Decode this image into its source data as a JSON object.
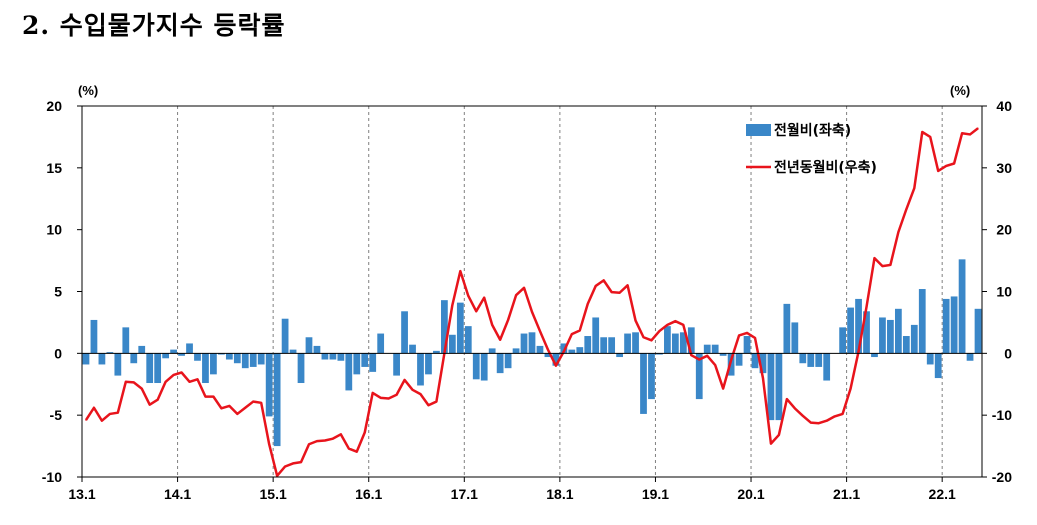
{
  "title": "2. 수입물가지수 등락률",
  "chart_data": {
    "type": "bar+line",
    "left_axis_unit": "(%)",
    "right_axis_unit": "(%)",
    "left_ylim": [
      -10,
      20
    ],
    "right_ylim": [
      -20,
      40
    ],
    "left_ticks": [
      "20",
      "15",
      "10",
      "5",
      "0",
      "-5",
      "-10"
    ],
    "right_ticks": [
      "40",
      "30",
      "20",
      "10",
      "0",
      "-10",
      "-20"
    ],
    "x_tick_labels": [
      "13.1",
      "14.1",
      "15.1",
      "16.1",
      "17.1",
      "18.1",
      "19.1",
      "20.1",
      "21.1",
      "22.1"
    ],
    "grid": "vertical dashed at each year",
    "legend_position": "top-right",
    "colors": {
      "bar": "#3a87c8",
      "line": "#e8141c"
    },
    "series": [
      {
        "name": "전월비(좌축)",
        "kind": "bar",
        "axis": "left",
        "values": [
          -0.9,
          2.7,
          -0.9,
          0.1,
          -1.8,
          2.1,
          -0.8,
          0.6,
          -2.4,
          -2.4,
          -0.4,
          0.3,
          -0.2,
          0.8,
          -0.6,
          -2.4,
          -1.7,
          -0.1,
          -0.5,
          -0.8,
          -1.2,
          -1.1,
          -0.9,
          -5.1,
          -7.5,
          2.8,
          0.3,
          -2.4,
          1.3,
          0.6,
          -0.5,
          -0.5,
          -0.6,
          -3.0,
          -1.7,
          -1.1,
          -1.5,
          1.6,
          0.0,
          -1.8,
          3.4,
          0.7,
          -2.6,
          -1.7,
          0.2,
          4.3,
          1.5,
          4.1,
          2.2,
          -2.1,
          -2.2,
          0.4,
          -1.6,
          -1.2,
          0.4,
          1.6,
          1.7,
          0.6,
          -0.3,
          -1.0,
          0.8,
          0.3,
          0.5,
          1.4,
          2.9,
          1.3,
          1.3,
          -0.3,
          1.6,
          1.7,
          -4.9,
          -3.7,
          -0.1,
          2.2,
          1.6,
          1.7,
          2.1,
          -3.7,
          0.7,
          0.7,
          -0.2,
          -1.8,
          -1.0,
          1.4,
          -1.2,
          -1.6,
          -5.4,
          -5.4,
          4.0,
          2.5,
          -0.8,
          -1.1,
          -1.1,
          -2.2,
          0.0,
          2.1,
          3.7,
          4.4,
          3.4,
          -0.3,
          2.9,
          2.7,
          3.6,
          1.4,
          2.3,
          5.2,
          -0.9,
          -2.0,
          4.4,
          4.6,
          7.6,
          -0.6,
          3.6
        ]
      },
      {
        "name": "전년동월비(우축)",
        "kind": "line",
        "axis": "right",
        "values": [
          -10.8,
          -8.8,
          -10.9,
          -9.8,
          -9.6,
          -4.6,
          -4.7,
          -5.7,
          -8.3,
          -7.5,
          -4.6,
          -3.5,
          -3.1,
          -4.6,
          -4.2,
          -7.0,
          -7.0,
          -8.9,
          -8.5,
          -9.8,
          -8.8,
          -7.8,
          -8.0,
          -14.7,
          -19.8,
          -18.3,
          -17.8,
          -17.6,
          -14.7,
          -14.2,
          -14.1,
          -13.8,
          -13.1,
          -15.4,
          -15.9,
          -12.8,
          -6.4,
          -7.2,
          -7.3,
          -6.7,
          -4.3,
          -5.9,
          -6.6,
          -8.4,
          -7.8,
          0.0,
          7.8,
          13.3,
          9.3,
          6.8,
          9.0,
          4.6,
          2.2,
          5.4,
          9.4,
          10.6,
          6.7,
          3.6,
          0.6,
          -2.0,
          0.3,
          3.1,
          3.7,
          8.0,
          10.9,
          11.8,
          9.9,
          9.8,
          11.0,
          5.3,
          2.6,
          2.1,
          3.6,
          4.6,
          5.2,
          4.6,
          -0.3,
          -1.0,
          -0.4,
          -1.9,
          -5.7,
          -1.1,
          2.9,
          3.3,
          2.5,
          -4.0,
          -14.6,
          -13.2,
          -7.4,
          -8.9,
          -10.1,
          -11.2,
          -11.3,
          -10.9,
          -10.2,
          -9.8,
          -5.7,
          0.3,
          7.5,
          15.4,
          14.1,
          14.3,
          19.6,
          23.3,
          26.7,
          35.8,
          35.0,
          29.5,
          30.3,
          30.7,
          35.6,
          35.4,
          36.4
        ]
      }
    ]
  }
}
